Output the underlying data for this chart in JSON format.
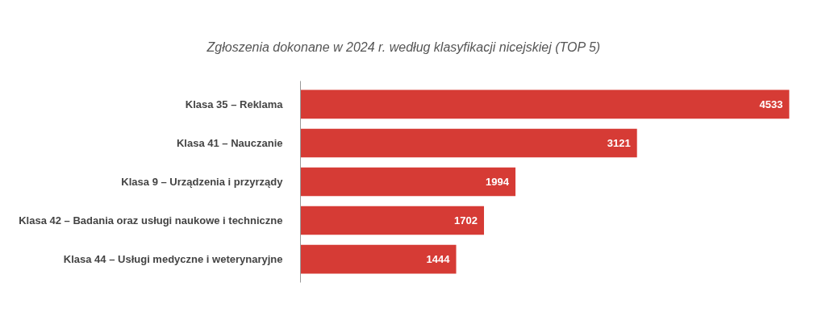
{
  "chart_data": {
    "type": "bar",
    "orientation": "horizontal",
    "title": "Zgłoszenia dokonane w 2024 r. według klasyfikacji nicejskiej (TOP 5)",
    "categories": [
      "Klasa 35 – Reklama",
      "Klasa 41 – Nauczanie",
      "Klasa 9 – Urządzenia i przyrządy",
      "Klasa 42 – Badania oraz usługi naukowe i techniczne",
      "Klasa 44 – Usługi medyczne i weterynaryjne"
    ],
    "values": [
      4533,
      3121,
      1994,
      1702,
      1444
    ],
    "color": "#d63b35",
    "data_labels": true,
    "grid": false
  }
}
